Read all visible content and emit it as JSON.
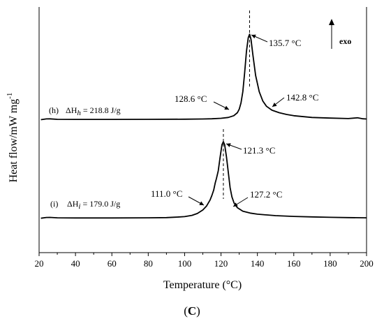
{
  "chart_data": {
    "type": "line",
    "xlabel": "Temperature (°C)",
    "ylabel_main": "Heat flow/mW mg",
    "ylabel_sup": "-1",
    "xlim": [
      20,
      200
    ],
    "xticks": [
      "20",
      "40",
      "60",
      "80",
      "100",
      "120",
      "140",
      "160",
      "180",
      "200"
    ],
    "panel_label_open": "(",
    "panel_label_letter": "C",
    "panel_label_close": ")",
    "exo_label": "exo",
    "series": [
      {
        "label_id": "(h)",
        "enthalpy_prefix": "ΔH",
        "enthalpy_sub": "h",
        "enthalpy_value": " = 218.8 J/g",
        "x": [
          21,
          24,
          26,
          30,
          40,
          60,
          80,
          100,
          110,
          115,
          120,
          124,
          127,
          129,
          130,
          131,
          132,
          133,
          134,
          135,
          135.7,
          136.5,
          137.5,
          139,
          141,
          143,
          145,
          148,
          152,
          156,
          160,
          170,
          180,
          190,
          195,
          198,
          200
        ],
        "y": [
          0.4,
          1.3,
          1.4,
          0.8,
          0.7,
          0.7,
          0.8,
          1.0,
          1.2,
          1.5,
          2.0,
          3.0,
          5.0,
          8.5,
          12.5,
          20,
          33,
          55,
          80,
          96,
          100,
          94,
          76,
          52,
          33,
          22,
          16,
          11.5,
          8.5,
          6.5,
          5.0,
          3.0,
          2.3,
          1.7,
          2.6,
          1.5,
          1.2
        ],
        "peak": {
          "x": 135.7,
          "label": "135.7 °C"
        },
        "onset": {
          "x": 128.6,
          "label": "128.6 °C"
        },
        "endset": {
          "x": 142.8,
          "label": "142.8 °C"
        }
      },
      {
        "label_id": "(i)",
        "enthalpy_prefix": "ΔH",
        "enthalpy_sub": "i",
        "enthalpy_value": " = 179.0 J/g",
        "x": [
          21,
          24,
          26,
          30,
          40,
          60,
          80,
          90,
          95,
          100,
          104,
          107,
          110,
          112,
          114,
          115,
          116,
          116.8,
          117.5,
          118.5,
          119.5,
          120.5,
          121.3,
          122,
          123,
          124,
          125,
          126,
          127.2,
          129,
          132,
          136,
          140,
          150,
          160,
          170,
          180,
          190,
          200
        ],
        "y": [
          0.3,
          1.3,
          1.4,
          0.8,
          0.6,
          0.6,
          0.8,
          1.1,
          1.6,
          2.4,
          4.0,
          6.5,
          11,
          16,
          24,
          30,
          37,
          46,
          52,
          62,
          80,
          96,
          100,
          96,
          80,
          60,
          40,
          28,
          20,
          14,
          9.5,
          7,
          5.5,
          3.6,
          2.6,
          2.0,
          1.5,
          1.1,
          0.8
        ],
        "peak": {
          "x": 121.3,
          "label": "121.3 °C"
        },
        "onset": {
          "x": 111.0,
          "label": "111.0 °C"
        },
        "endset": {
          "x": 127.2,
          "label": "127.2 °C"
        }
      }
    ]
  }
}
